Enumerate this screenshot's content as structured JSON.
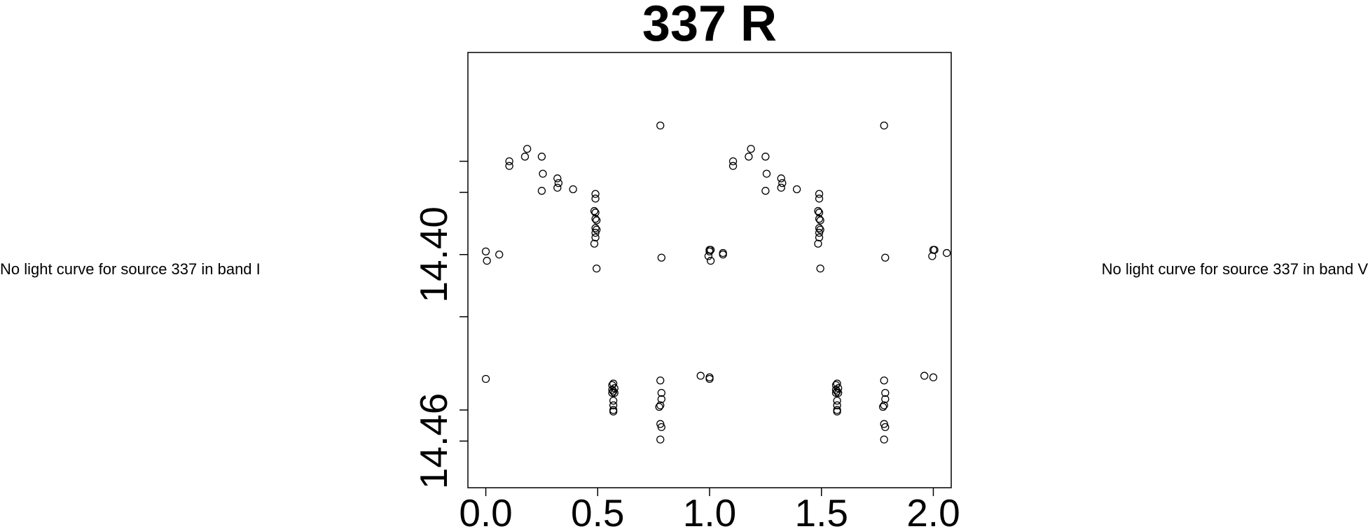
{
  "left_message": "No light curve for source 337 in band I",
  "right_message": "No light curve for source 337 in band V",
  "chart_data": {
    "type": "scatter",
    "title": "337 R",
    "xlabel": "",
    "ylabel": "",
    "xlim": [
      -0.08,
      2.08
    ],
    "ylim": [
      14.475,
      14.335
    ],
    "y_inverted": true,
    "grid": false,
    "x_ticks": [
      {
        "value": 0.0,
        "label": "0.0"
      },
      {
        "value": 0.5,
        "label": "0.5"
      },
      {
        "value": 1.0,
        "label": "1.0"
      },
      {
        "value": 1.5,
        "label": "1.5"
      },
      {
        "value": 2.0,
        "label": "2.0"
      }
    ],
    "y_ticks": [
      {
        "value": 14.37,
        "label": ""
      },
      {
        "value": 14.38,
        "label": ""
      },
      {
        "value": 14.4,
        "label": "14.40"
      },
      {
        "value": 14.42,
        "label": ""
      },
      {
        "value": 14.45,
        "label": ""
      },
      {
        "value": 14.46,
        "label": "14.46"
      }
    ],
    "points": [
      [
        0.0,
        14.399
      ],
      [
        0.005,
        14.402
      ],
      [
        0.06,
        14.4
      ],
      [
        0.0,
        14.44
      ],
      [
        0.105,
        14.37
      ],
      [
        0.105,
        14.3715
      ],
      [
        0.175,
        14.3685
      ],
      [
        0.185,
        14.366
      ],
      [
        0.25,
        14.3685
      ],
      [
        0.255,
        14.374
      ],
      [
        0.25,
        14.3795
      ],
      [
        0.32,
        14.3755
      ],
      [
        0.325,
        14.377
      ],
      [
        0.32,
        14.3785
      ],
      [
        0.39,
        14.379
      ],
      [
        0.49,
        14.3805
      ],
      [
        0.49,
        14.382
      ],
      [
        0.485,
        14.386
      ],
      [
        0.49,
        14.3865
      ],
      [
        0.49,
        14.3885
      ],
      [
        0.495,
        14.389
      ],
      [
        0.49,
        14.3915
      ],
      [
        0.495,
        14.392
      ],
      [
        0.49,
        14.393
      ],
      [
        0.49,
        14.3945
      ],
      [
        0.485,
        14.3965
      ],
      [
        0.495,
        14.4045
      ],
      [
        0.57,
        14.4415
      ],
      [
        0.565,
        14.442
      ],
      [
        0.575,
        14.443
      ],
      [
        0.565,
        14.4435
      ],
      [
        0.57,
        14.444
      ],
      [
        0.575,
        14.4445
      ],
      [
        0.565,
        14.4445
      ],
      [
        0.57,
        14.447
      ],
      [
        0.57,
        14.4485
      ],
      [
        0.57,
        14.45
      ],
      [
        0.57,
        14.4505
      ],
      [
        0.78,
        14.3585
      ],
      [
        0.785,
        14.401
      ],
      [
        0.78,
        14.4405
      ],
      [
        0.785,
        14.4445
      ],
      [
        0.785,
        14.4465
      ],
      [
        0.78,
        14.4485
      ],
      [
        0.775,
        14.449
      ],
      [
        0.78,
        14.4545
      ],
      [
        0.785,
        14.4555
      ],
      [
        0.78,
        14.4595
      ],
      [
        0.96,
        14.439
      ],
      [
        0.995,
        14.4005
      ],
      [
        1.0,
        14.3985
      ],
      [
        1.005,
        14.3985
      ],
      [
        1.06,
        14.3995
      ],
      [
        1.0,
        14.4395
      ]
    ]
  }
}
